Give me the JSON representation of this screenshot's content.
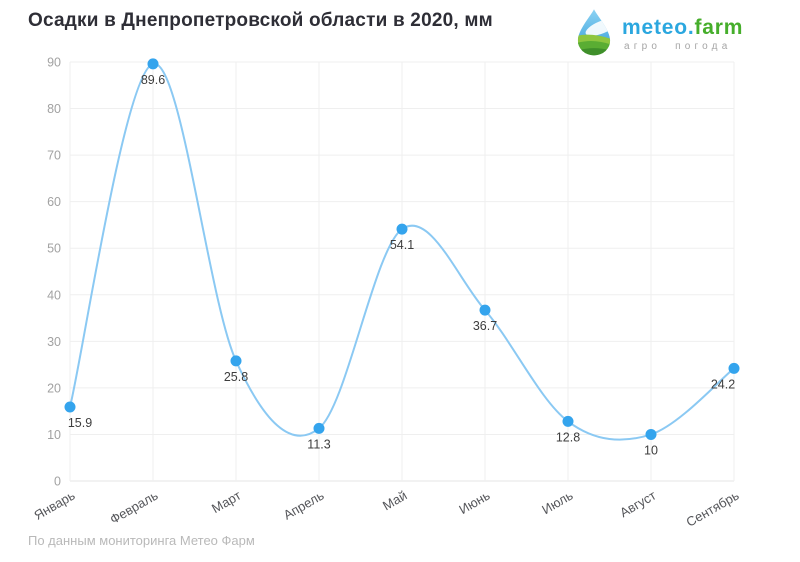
{
  "header": {
    "title": "Осадки в Днепропетровской области в 2020, мм",
    "logo": {
      "brand_blue": "meteo.",
      "brand_green": "farm",
      "tagline": "агро погода"
    }
  },
  "footer": {
    "source_note": "По данным мониторинга Метео Фарм"
  },
  "colors": {
    "line": "#8bc9f3",
    "marker": "#34a4ed",
    "grid": "#efefef",
    "zero_line": "#e6e6e6",
    "y_tick_text": "#a2a2a2",
    "month_text": "#55565a",
    "data_label": "#3d3d3d",
    "title_text": "#2e2e36",
    "footer_text": "#b9b9b9",
    "logo_blue": "#2ba7df",
    "logo_green": "#46ae2b",
    "tagline_gray": "#a5a5a5"
  },
  "chart_data": {
    "type": "line",
    "title": "Осадки в Днепропетровской области в 2020, мм",
    "categories": [
      "Январь",
      "Февраль",
      "Март",
      "Апрель",
      "Май",
      "Июнь",
      "Июль",
      "Август",
      "Сентябрь"
    ],
    "values": [
      15.9,
      89.6,
      25.8,
      11.3,
      54.1,
      36.7,
      12.8,
      10,
      24.2
    ],
    "xlabel": "",
    "ylabel": "",
    "ylim": [
      0,
      90
    ],
    "ytick_step": 10,
    "grid": true,
    "legend": false,
    "smooth": true,
    "marker_labels_visible": true
  }
}
